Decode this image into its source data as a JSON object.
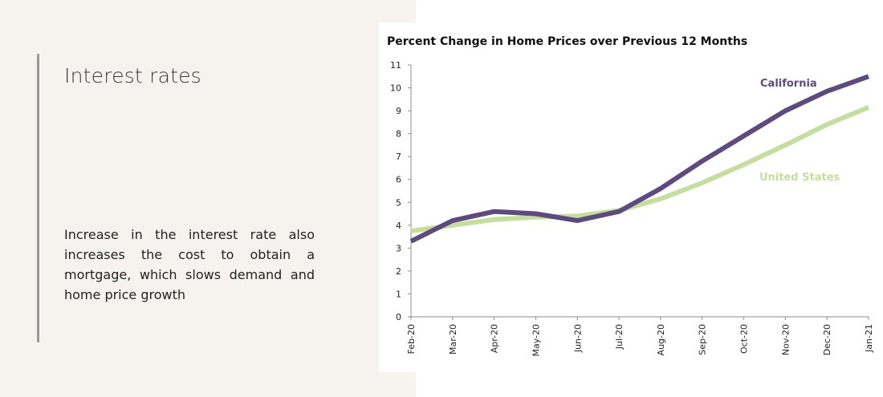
{
  "slide": {
    "title": "Interest rates",
    "body": "Increase in the interest rate also increases the cost to obtain a mortgage, which slows demand and home price growth"
  },
  "chart_data": {
    "type": "line",
    "title": "Percent Change in Home Prices over Previous 12 Months",
    "categories": [
      "Feb-20",
      "Mar-20",
      "Apr-20",
      "May-20",
      "Jun-20",
      "Jul-20",
      "Aug-20",
      "Sep-20",
      "Oct-20",
      "Nov-20",
      "Dec-20",
      "Jan-21"
    ],
    "ylim": [
      0,
      11
    ],
    "yticks": [
      0,
      1,
      2,
      3,
      4,
      5,
      6,
      7,
      8,
      9,
      10,
      11
    ],
    "grid": false,
    "legend": "inline labels",
    "series": [
      {
        "name": "California",
        "color": "#5e4a7e",
        "values": [
          3.3,
          4.2,
          4.6,
          4.5,
          4.2,
          4.6,
          5.6,
          6.8,
          7.9,
          9.0,
          9.85,
          10.5
        ]
      },
      {
        "name": "United States",
        "color": "#c5dea0",
        "values": [
          3.75,
          4.0,
          4.25,
          4.35,
          4.4,
          4.65,
          5.15,
          5.85,
          6.65,
          7.5,
          8.4,
          9.15
        ]
      }
    ]
  }
}
